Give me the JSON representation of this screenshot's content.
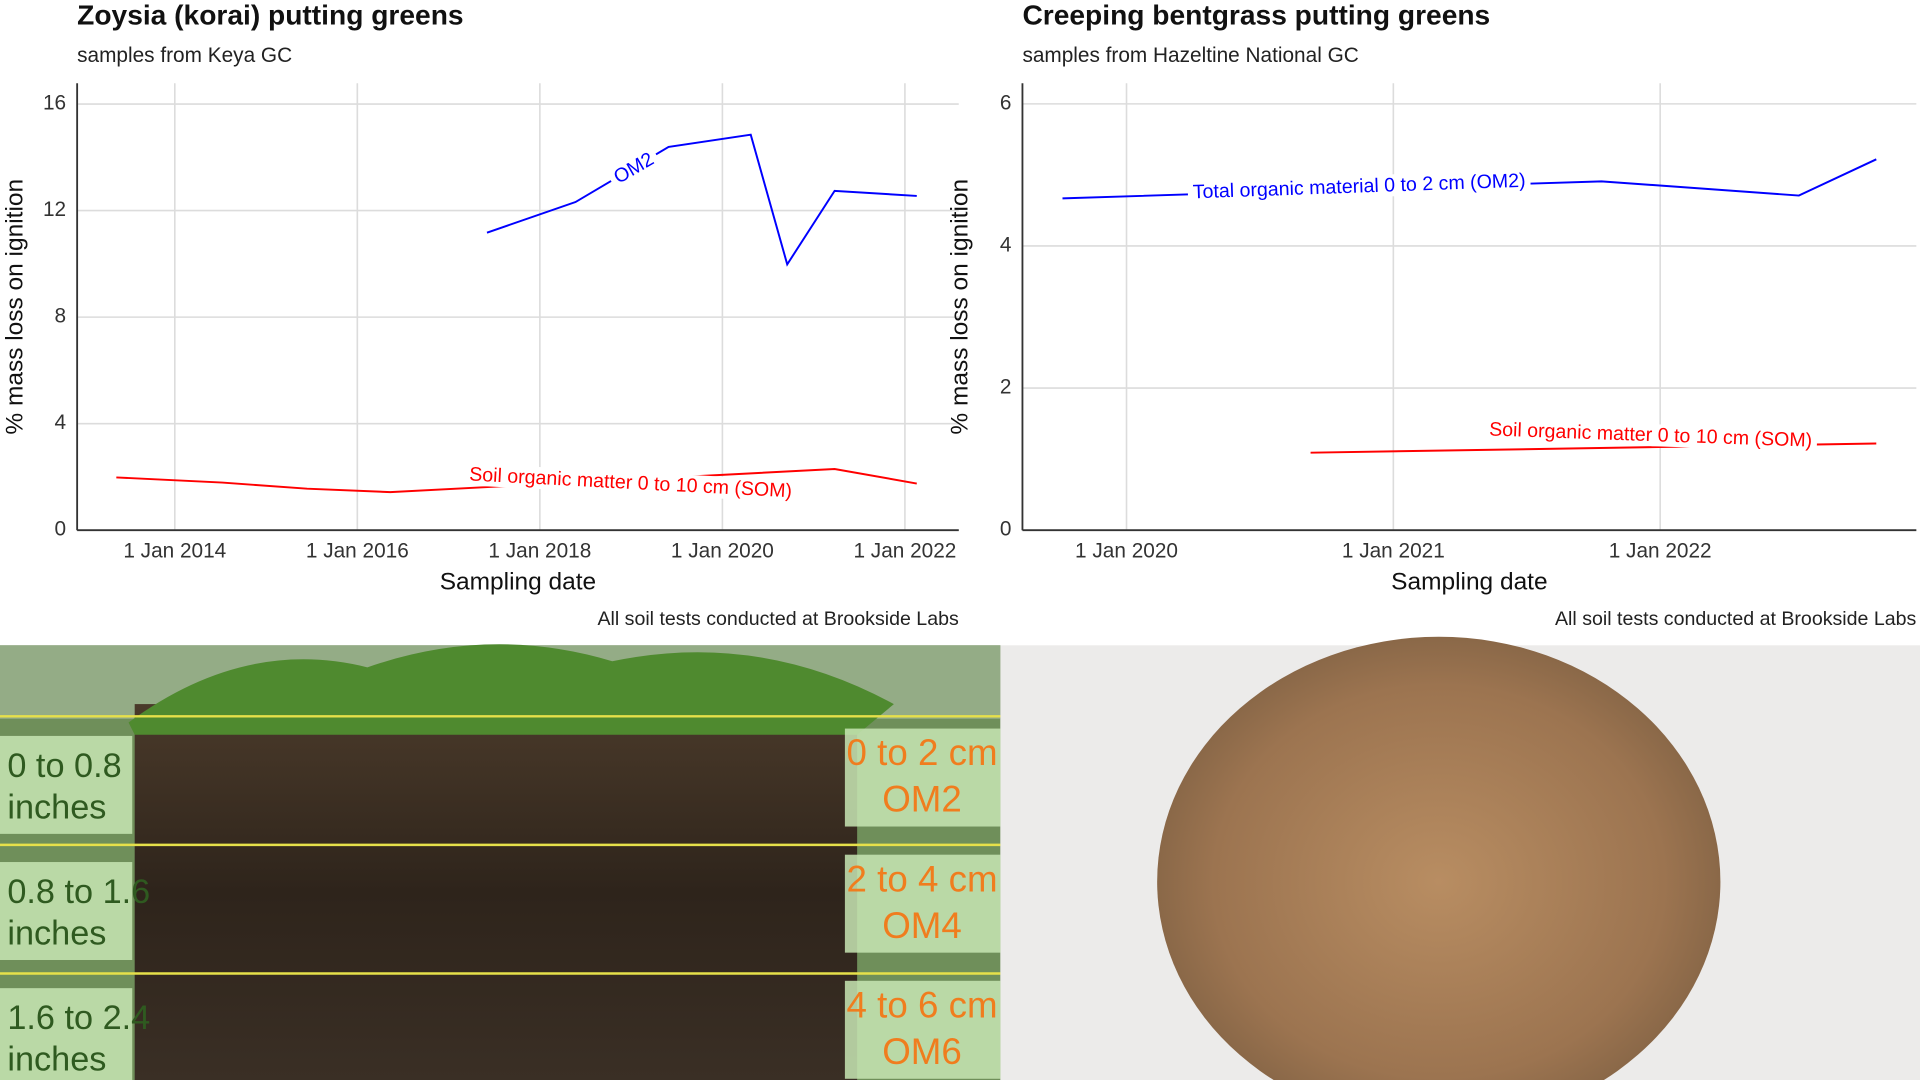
{
  "chart_data": [
    {
      "type": "line",
      "title": "Zoysia (korai) putting greens",
      "subtitle": "samples from Keya GC",
      "x_label": "Sampling date",
      "y_label": "% mass loss on ignition",
      "caption": "All soil tests conducted at Brookside Labs",
      "xlim": [
        2012.93,
        2022.59
      ],
      "ylim": [
        0,
        16.78
      ],
      "grid": true,
      "xticks": [
        {
          "value": 2014,
          "label": "1 Jan 2014"
        },
        {
          "value": 2016,
          "label": "1 Jan 2016"
        },
        {
          "value": 2018,
          "label": "1 Jan 2018"
        },
        {
          "value": 2020,
          "label": "1 Jan 2020"
        },
        {
          "value": 2022,
          "label": "1 Jan 2022"
        }
      ],
      "yticks": [
        0,
        4,
        8,
        12,
        16
      ],
      "series": [
        {
          "name": "OM2",
          "color": "#0000ff",
          "x": [
            2017.42,
            2018.39,
            2019.41,
            2020.31,
            2020.71,
            2021.23,
            2022.13
          ],
          "values": [
            11.17,
            12.32,
            14.39,
            14.85,
            9.98,
            12.74,
            12.55
          ]
        },
        {
          "name": "Soil organic matter 0 to 10 cm (SOM)",
          "color": "#ff0000",
          "x": [
            2013.36,
            2014.52,
            2015.45,
            2016.36,
            2021.23,
            2022.13
          ],
          "values": [
            1.98,
            1.79,
            1.56,
            1.43,
            2.3,
            1.75
          ]
        }
      ]
    },
    {
      "type": "line",
      "title": "Creeping bentgrass putting greens",
      "subtitle": "samples from Hazeltine National GC",
      "x_label": "Sampling date",
      "y_label": "% mass loss on ignition",
      "caption": "All soil tests conducted at Brookside Labs",
      "xlim": [
        2019.61,
        2022.96
      ],
      "ylim": [
        0,
        6.29
      ],
      "grid": true,
      "xticks": [
        {
          "value": 2020,
          "label": "1 Jan 2020"
        },
        {
          "value": 2021,
          "label": "1 Jan 2021"
        },
        {
          "value": 2022,
          "label": "1 Jan 2022"
        }
      ],
      "yticks": [
        0,
        2,
        4,
        6
      ],
      "series": [
        {
          "name": "Total organic material 0 to 2 cm (OM2)",
          "color": "#0000ff",
          "x": [
            2019.76,
            2021.78,
            2022.52,
            2022.81
          ],
          "values": [
            4.67,
            4.91,
            4.71,
            5.22
          ]
        },
        {
          "name": "Soil organic matter 0 to 10 cm (SOM)",
          "color": "#ff0000",
          "x": [
            2020.69,
            2022.81
          ],
          "values": [
            1.09,
            1.22
          ]
        }
      ]
    }
  ],
  "photo_labels": {
    "depth_inches": [
      [
        "0 to 0.8",
        "inches"
      ],
      [
        "0.8 to 1.6",
        "inches"
      ],
      [
        "1.6 to 2.4",
        "inches"
      ]
    ],
    "depth_cm": [
      [
        "0 to 2 cm",
        "OM2"
      ],
      [
        "2 to 4 cm",
        "OM4"
      ],
      [
        "4 to 6 cm",
        "OM6"
      ]
    ]
  }
}
